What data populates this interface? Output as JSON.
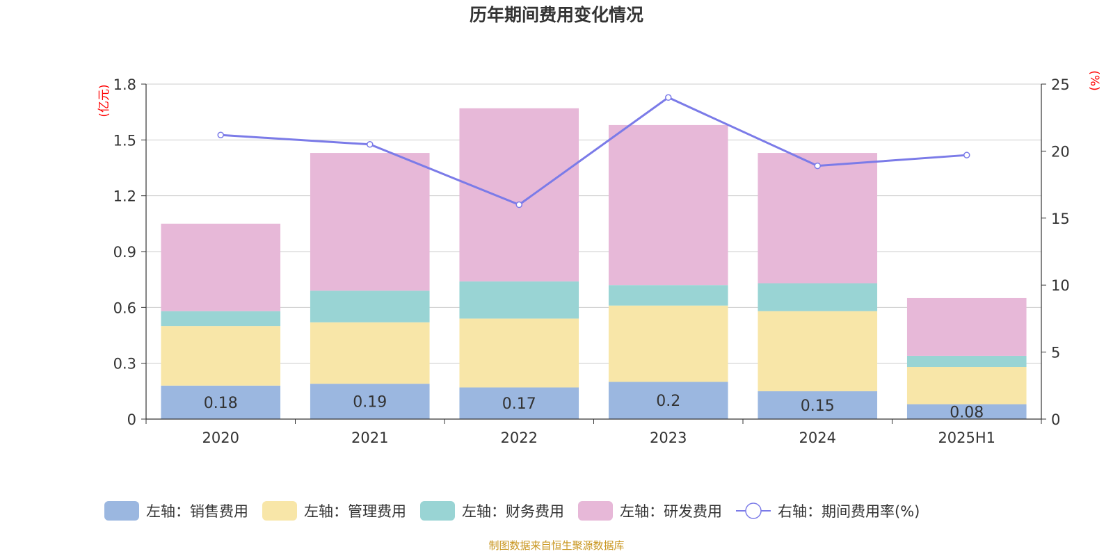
{
  "chart_data": {
    "type": "bar",
    "title": "历年期间费用变化情况",
    "categories": [
      "2020",
      "2021",
      "2022",
      "2023",
      "2024",
      "2025H1"
    ],
    "stacked": true,
    "series": [
      {
        "name": "左轴：销售费用",
        "axis": "left",
        "values": [
          0.18,
          0.19,
          0.17,
          0.2,
          0.15,
          0.08
        ],
        "color": "#9bb7e0",
        "show_labels": true
      },
      {
        "name": "左轴：管理费用",
        "axis": "left",
        "values": [
          0.32,
          0.33,
          0.37,
          0.41,
          0.43,
          0.2
        ],
        "color": "#f8e6a8"
      },
      {
        "name": "左轴：财务费用",
        "axis": "left",
        "values": [
          0.08,
          0.17,
          0.2,
          0.11,
          0.15,
          0.06
        ],
        "color": "#99d4d4"
      },
      {
        "name": "左轴：研发费用",
        "axis": "left",
        "values": [
          0.47,
          0.74,
          0.93,
          0.86,
          0.7,
          0.31
        ],
        "color": "#e7b8d8"
      },
      {
        "name": "右轴：期间费用率(%)",
        "axis": "right",
        "type": "line",
        "values": [
          21.2,
          20.5,
          16.0,
          24.0,
          18.9,
          19.7
        ],
        "color": "#7b7be8"
      }
    ],
    "left_axis": {
      "label": "(亿元)",
      "ticks": [
        "0",
        "0.3",
        "0.6",
        "0.9",
        "1.2",
        "1.5",
        "1.8"
      ],
      "ylim": [
        0,
        1.8
      ]
    },
    "right_axis": {
      "label": "(%)",
      "ticks": [
        "0",
        "5",
        "10",
        "15",
        "20",
        "25"
      ],
      "ylim": [
        0,
        25
      ]
    },
    "axis_label_color": "#ff0000",
    "grid": true,
    "legend_position": "bottom"
  },
  "source_text": "制图数据来自恒生聚源数据库",
  "source_color": "#c8951e"
}
